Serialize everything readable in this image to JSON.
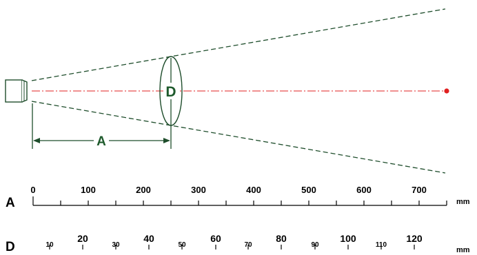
{
  "labels": {
    "distance": "A",
    "diameter": "D"
  },
  "scale_a": {
    "row_label": "A",
    "unit": "mm",
    "major_labels": [
      "0",
      "100",
      "200",
      "300",
      "400",
      "500",
      "600",
      "700"
    ]
  },
  "scale_d": {
    "row_label": "D",
    "unit": "mm",
    "minor_labels": [
      "10",
      "30",
      "50",
      "70",
      "90",
      "110"
    ],
    "major_labels": [
      "20",
      "40",
      "60",
      "80",
      "100",
      "120"
    ]
  },
  "colors": {
    "cone_lines": "#1e4d2b",
    "beam_axis": "#e02020",
    "target_dot": "#e02020",
    "labels": "#1e5a2c"
  }
}
